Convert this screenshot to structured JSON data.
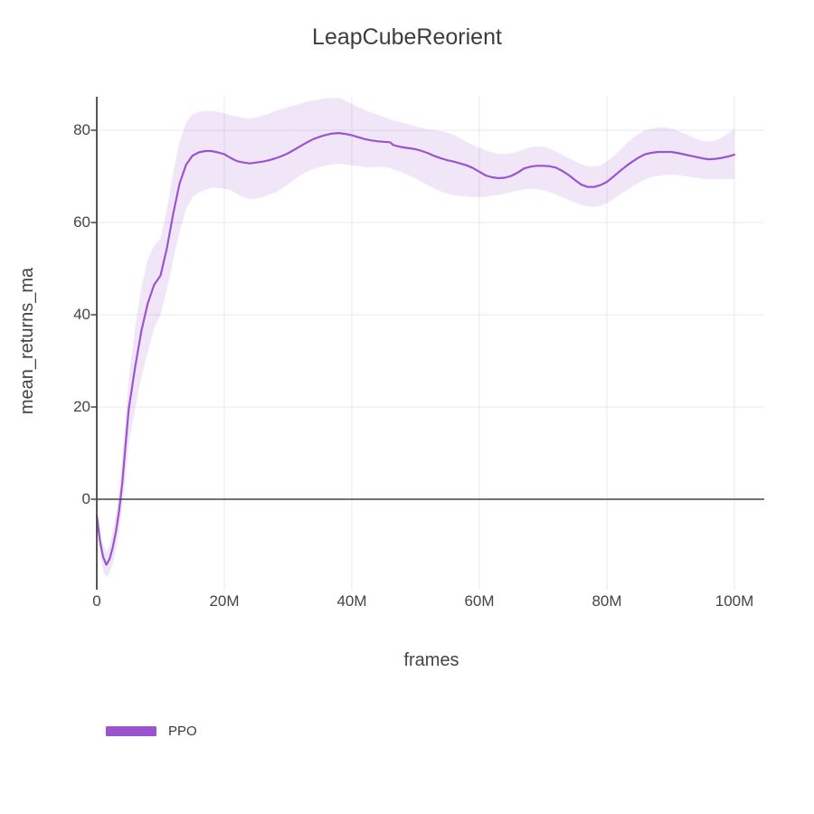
{
  "figure": {
    "title": "LeapCubeReorient",
    "x_axis": {
      "label": "frames",
      "tick_labels": [
        "0",
        "20M",
        "40M",
        "60M",
        "80M",
        "100M"
      ],
      "tick_values_millions": [
        0,
        20,
        40,
        60,
        80,
        100
      ]
    },
    "y_axis": {
      "label": "mean_returns_ma",
      "tick_labels": [
        "0",
        "20",
        "40",
        "60",
        "80"
      ],
      "tick_values": [
        0,
        20,
        40,
        60,
        80
      ]
    },
    "legend": {
      "items": [
        {
          "label": "PPO",
          "color": "#9b54d0"
        }
      ]
    }
  },
  "colors": {
    "background": "#ffffff",
    "title_text": "#3d3d3d",
    "axis_text": "#444444",
    "gridline": "#e9e9e9",
    "zeroline": "#444444",
    "axis_line": "#444444",
    "series_line": "#9b54d0",
    "series_band": "rgba(155,84,208,0.15)"
  },
  "chart_data": {
    "type": "line",
    "title": "LeapCubeReorient",
    "xlabel": "frames",
    "ylabel": "mean_returns_ma",
    "x_unit": "millions of frames",
    "xlim_millions": [
      0,
      104.7
    ],
    "ylim": [
      -18.6,
      87.3
    ],
    "grid": true,
    "zeroline": true,
    "legend_position": "bottom-left",
    "series": [
      {
        "name": "PPO",
        "color": "#9b54d0",
        "band_fill": "rgba(155,84,208,0.15)",
        "x_millions": [
          0,
          0.5,
          1,
          1.5,
          2,
          2.5,
          3,
          3.5,
          4,
          4.5,
          5,
          6,
          7,
          8,
          9,
          10,
          11,
          12,
          13,
          14,
          15,
          16,
          17,
          18,
          19,
          20,
          21,
          22,
          23,
          24,
          25,
          26,
          27,
          28,
          29,
          30,
          31,
          32,
          33,
          34,
          35,
          36,
          37,
          38,
          39,
          40,
          41,
          42,
          43,
          44,
          45,
          46,
          46.5,
          47,
          48,
          49,
          50,
          51,
          52,
          53,
          54,
          55,
          56,
          57,
          58,
          59,
          60,
          61,
          62,
          63,
          64,
          65,
          66,
          67,
          68,
          69,
          70,
          71,
          72,
          73,
          74,
          75,
          76,
          77,
          78,
          79,
          80,
          81,
          82,
          83,
          84,
          85,
          86,
          87,
          88,
          89,
          90,
          91,
          92,
          93,
          94,
          95,
          96,
          97,
          98,
          99,
          100
        ],
        "mean": [
          -3.5,
          -9,
          -12.5,
          -14.2,
          -13,
          -10.5,
          -7,
          -2.5,
          3.5,
          11.5,
          19.5,
          28.5,
          36.5,
          42.5,
          46.5,
          48.5,
          54.5,
          62,
          68.5,
          72.5,
          74.5,
          75.2,
          75.5,
          75.5,
          75.2,
          74.8,
          74.0,
          73.3,
          73.0,
          72.8,
          73.0,
          73.2,
          73.5,
          73.9,
          74.4,
          75.0,
          75.8,
          76.6,
          77.4,
          78.1,
          78.6,
          79.0,
          79.3,
          79.4,
          79.2,
          78.9,
          78.5,
          78.1,
          77.8,
          77.6,
          77.5,
          77.4,
          76.8,
          76.6,
          76.3,
          76.1,
          75.9,
          75.5,
          75.0,
          74.4,
          73.9,
          73.5,
          73.2,
          72.8,
          72.4,
          71.8,
          71.0,
          70.2,
          69.8,
          69.6,
          69.7,
          70.1,
          70.8,
          71.7,
          72.1,
          72.3,
          72.3,
          72.2,
          71.9,
          71.2,
          70.3,
          69.2,
          68.2,
          67.7,
          67.7,
          68.1,
          68.8,
          69.9,
          71.1,
          72.2,
          73.2,
          74.1,
          74.8,
          75.1,
          75.3,
          75.3,
          75.3,
          75.1,
          74.8,
          74.5,
          74.2,
          73.9,
          73.7,
          73.8,
          74.0,
          74.3,
          74.7
        ],
        "band_lo": [
          -5.5,
          -11.5,
          -15.5,
          -17,
          -16,
          -14,
          -11,
          -7,
          -2,
          4.5,
          12,
          19.5,
          26.5,
          32,
          37,
          40,
          45.5,
          52,
          58,
          63,
          65.5,
          66.5,
          67,
          67.5,
          67.5,
          67.3,
          67.0,
          66.2,
          65.5,
          65.0,
          65.2,
          65.5,
          66.0,
          66.5,
          67.3,
          68.3,
          69.3,
          70.3,
          71.0,
          71.6,
          72.0,
          72.3,
          72.6,
          72.7,
          72.6,
          72.4,
          72.2,
          72.0,
          72.0,
          72.0,
          72.0,
          71.8,
          71.5,
          71.3,
          70.8,
          70.2,
          69.5,
          68.8,
          68.0,
          67.3,
          66.7,
          66.2,
          65.9,
          65.7,
          65.6,
          65.5,
          65.5,
          65.6,
          65.8,
          66.0,
          66.3,
          66.6,
          66.9,
          67.2,
          67.3,
          67.2,
          67.0,
          66.6,
          66.1,
          65.5,
          64.9,
          64.3,
          63.8,
          63.5,
          63.4,
          63.6,
          64.2,
          65.0,
          66.0,
          66.9,
          67.8,
          68.6,
          69.3,
          69.8,
          70.1,
          70.3,
          70.4,
          70.3,
          70.1,
          69.9,
          69.7,
          69.5,
          69.4,
          69.4,
          69.4,
          69.4,
          69.5
        ],
        "band_hi": [
          -2,
          -6.5,
          -10,
          -11.5,
          -10,
          -7,
          -3,
          2,
          9,
          17,
          26,
          37,
          46,
          52,
          55,
          56.5,
          63,
          71,
          77.5,
          81.5,
          83.5,
          84,
          84.2,
          84.2,
          84,
          83.7,
          83.3,
          83.0,
          82.7,
          82.5,
          82.8,
          83.2,
          83.6,
          84.2,
          84.6,
          85.0,
          85.4,
          85.8,
          86.2,
          86.5,
          86.7,
          86.9,
          87.0,
          87.0,
          86.4,
          85.7,
          85.0,
          84.4,
          83.9,
          83.4,
          82.9,
          82.4,
          82.2,
          82.0,
          81.6,
          81.2,
          80.8,
          80.5,
          80.2,
          80.0,
          79.8,
          79.5,
          79.0,
          78.3,
          77.5,
          76.8,
          76.2,
          75.6,
          75.2,
          74.9,
          74.8,
          75.0,
          75.4,
          75.9,
          76.3,
          76.5,
          76.4,
          76.0,
          75.4,
          74.7,
          74.0,
          73.3,
          72.6,
          72.2,
          72.1,
          72.4,
          73.2,
          74.3,
          75.6,
          77.0,
          78.3,
          79.3,
          80.0,
          80.4,
          80.6,
          80.6,
          80.4,
          80.0,
          79.4,
          78.8,
          78.2,
          77.7,
          77.5,
          77.8,
          78.4,
          79.3,
          80.3
        ]
      }
    ]
  }
}
